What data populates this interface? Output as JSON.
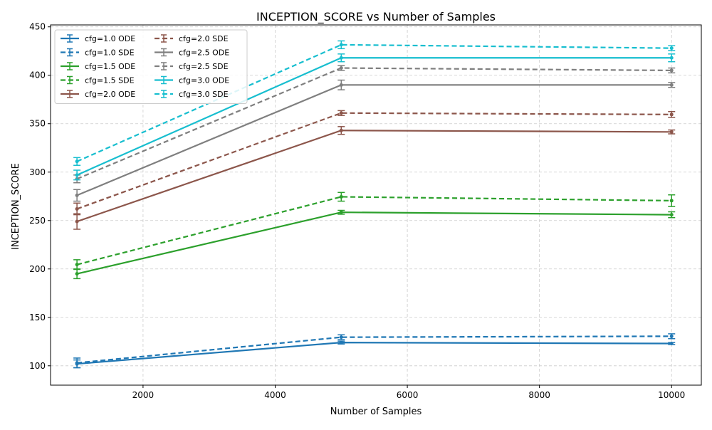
{
  "chart_data": {
    "type": "line",
    "title": "INCEPTION_SCORE vs Number of Samples",
    "xlabel": "Number of Samples",
    "ylabel": "INCEPTION_SCORE",
    "xlim": [
      600,
      10450
    ],
    "ylim": [
      80,
      452
    ],
    "xticks": [
      2000,
      4000,
      6000,
      8000,
      10000
    ],
    "yticks": [
      100,
      150,
      200,
      250,
      300,
      350,
      400,
      450
    ],
    "grid": true,
    "legend_position": "top-left",
    "legend_columns": 2,
    "x": [
      1000,
      5000,
      10000
    ],
    "series": [
      {
        "name": "cfg=1.0 ODE",
        "color": "#1f77b4",
        "dash": false,
        "values": [
          102,
          124,
          123
        ],
        "errors": [
          4,
          1.5,
          1
        ]
      },
      {
        "name": "cfg=1.0 SDE",
        "color": "#1f77b4",
        "dash": true,
        "values": [
          103,
          129.5,
          130.5
        ],
        "errors": [
          5,
          2.5,
          2.5
        ]
      },
      {
        "name": "cfg=1.5 ODE",
        "color": "#2ca02c",
        "dash": false,
        "values": [
          195,
          258.5,
          256
        ],
        "errors": [
          5,
          2,
          3
        ]
      },
      {
        "name": "cfg=1.5 SDE",
        "color": "#2ca02c",
        "dash": true,
        "values": [
          204.5,
          274.5,
          270.5
        ],
        "errors": [
          5,
          4.5,
          6
        ]
      },
      {
        "name": "cfg=2.0 ODE",
        "color": "#8c564b",
        "dash": false,
        "values": [
          249,
          343,
          341.5
        ],
        "errors": [
          8,
          4,
          2
        ]
      },
      {
        "name": "cfg=2.0 SDE",
        "color": "#8c564b",
        "dash": true,
        "values": [
          262,
          361,
          359.5
        ],
        "errors": [
          6,
          2.5,
          3
        ]
      },
      {
        "name": "cfg=2.5 ODE",
        "color": "#7f7f7f",
        "dash": false,
        "values": [
          276,
          390,
          390
        ],
        "errors": [
          6,
          5,
          2.5
        ]
      },
      {
        "name": "cfg=2.5 SDE",
        "color": "#7f7f7f",
        "dash": true,
        "values": [
          293,
          407.5,
          405
        ],
        "errors": [
          4,
          2.5,
          2.5
        ]
      },
      {
        "name": "cfg=3.0 ODE",
        "color": "#17becf",
        "dash": false,
        "values": [
          297,
          418,
          418
        ],
        "errors": [
          5,
          4,
          4
        ]
      },
      {
        "name": "cfg=3.0 SDE",
        "color": "#17becf",
        "dash": true,
        "values": [
          311,
          431.5,
          428
        ],
        "errors": [
          4,
          4,
          2.5
        ]
      }
    ]
  }
}
